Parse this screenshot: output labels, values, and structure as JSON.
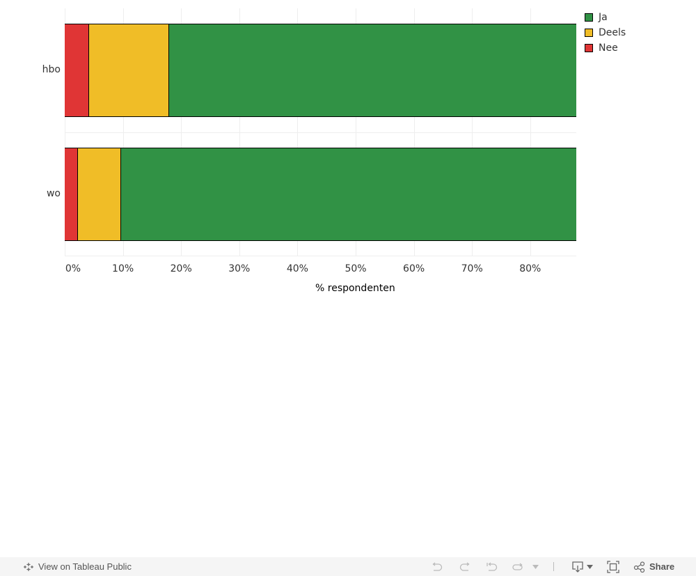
{
  "chart_data": {
    "type": "bar",
    "orientation": "horizontal",
    "stacked": true,
    "categories": [
      "hbo",
      "wo"
    ],
    "series": [
      {
        "name": "Nee",
        "color": "#e03535",
        "values": [
          4.2,
          2.3
        ]
      },
      {
        "name": "Deels",
        "color": "#f0bd27",
        "values": [
          13.7,
          7.4
        ]
      },
      {
        "name": "Ja",
        "color": "#319245",
        "values": [
          82.1,
          90.3
        ]
      }
    ],
    "title": "",
    "xlabel": "% respondenten",
    "ylabel": "",
    "xlim": [
      0,
      88
    ],
    "xticks": [
      "0%",
      "10%",
      "20%",
      "30%",
      "40%",
      "50%",
      "60%",
      "70%",
      "80%"
    ],
    "grid": true,
    "legend": {
      "position": "top-right",
      "entries": [
        "Ja",
        "Deels",
        "Nee"
      ]
    }
  },
  "legend": {
    "items": [
      {
        "label": "Ja",
        "color": "#319245"
      },
      {
        "label": "Deels",
        "color": "#f0bd27"
      },
      {
        "label": "Nee",
        "color": "#e03535"
      }
    ]
  },
  "toolbar": {
    "view_on_label": "View on Tableau Public",
    "share_label": "Share",
    "icons": [
      "tableau-logo-icon",
      "undo-icon",
      "redo-icon",
      "revert-icon",
      "refresh-icon",
      "dropdown-icon",
      "download-icon",
      "fullscreen-icon",
      "share-icon"
    ]
  }
}
